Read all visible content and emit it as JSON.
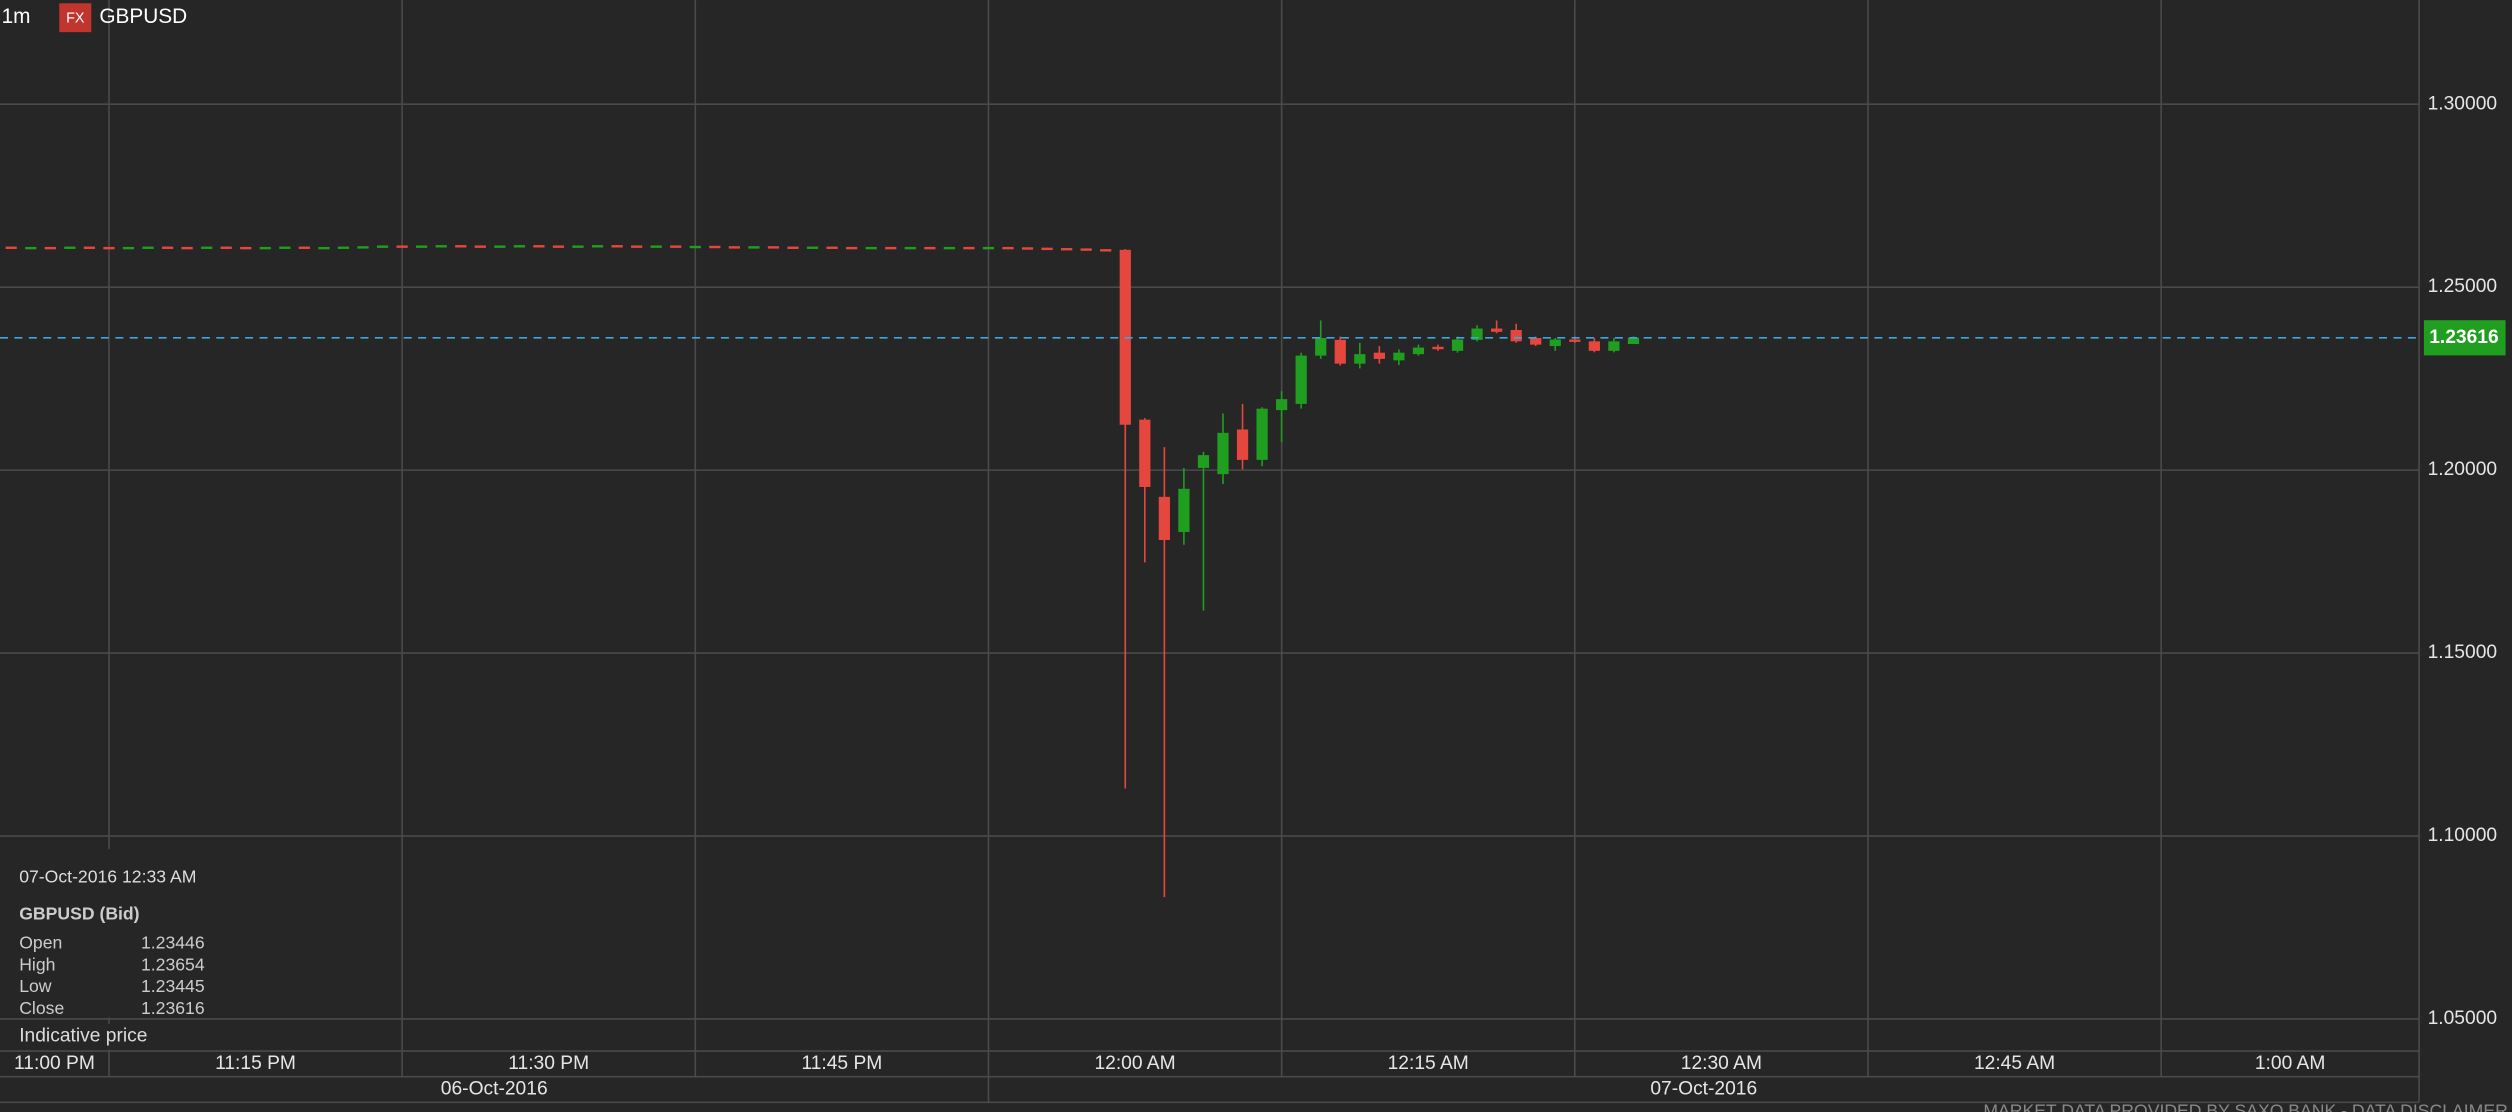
{
  "chart_data": {
    "type": "candlestick",
    "interval": "1m",
    "badge": "FX",
    "title": "GBPUSD",
    "x": [
      "23:10",
      "23:11",
      "23:12",
      "23:13",
      "23:14",
      "23:15",
      "23:16",
      "23:17",
      "23:18",
      "23:19",
      "23:20",
      "23:21",
      "23:22",
      "23:23",
      "23:24",
      "23:25",
      "23:26",
      "23:27",
      "23:28",
      "23:29",
      "23:30",
      "23:31",
      "23:32",
      "23:33",
      "23:34",
      "23:35",
      "23:36",
      "23:37",
      "23:38",
      "23:39",
      "23:40",
      "23:41",
      "23:42",
      "23:43",
      "23:44",
      "23:45",
      "23:46",
      "23:47",
      "23:48",
      "23:49",
      "23:50",
      "23:51",
      "23:52",
      "23:53",
      "23:54",
      "23:55",
      "23:56",
      "23:57",
      "23:58",
      "23:59",
      "00:00",
      "00:01",
      "00:02",
      "00:03",
      "00:04",
      "00:05",
      "00:06",
      "00:07",
      "00:08",
      "00:09",
      "00:10",
      "00:11",
      "00:12",
      "00:13",
      "00:14",
      "00:15",
      "00:16",
      "00:17",
      "00:18",
      "00:19",
      "00:20",
      "00:21",
      "00:22",
      "00:23",
      "00:24",
      "00:25",
      "00:26",
      "00:27",
      "00:28",
      "00:29",
      "00:30",
      "00:31",
      "00:32",
      "00:33"
    ],
    "open": [
      1.2611,
      1.2609,
      1.261,
      1.2609,
      1.2611,
      1.261,
      1.2609,
      1.261,
      1.2611,
      1.261,
      1.2609,
      1.2611,
      1.261,
      1.2609,
      1.261,
      1.2611,
      1.261,
      1.261,
      1.2611,
      1.2612,
      1.2614,
      1.2613,
      1.2614,
      1.2615,
      1.2614,
      1.2613,
      1.2614,
      1.2615,
      1.2614,
      1.2613,
      1.2614,
      1.2615,
      1.2614,
      1.2613,
      1.2614,
      1.2612,
      1.2613,
      1.2612,
      1.2611,
      1.2612,
      1.2611,
      1.261,
      1.2611,
      1.261,
      1.2609,
      1.261,
      1.2609,
      1.261,
      1.2609,
      1.261,
      1.2609,
      1.261,
      1.2609,
      1.2608,
      1.2607,
      1.2606,
      1.2604,
      1.2602,
      1.2138,
      1.1927,
      1.1831,
      1.2006,
      1.1989,
      1.2111,
      1.2028,
      1.2164,
      1.2181,
      1.2313,
      1.2356,
      1.2291,
      1.2321,
      1.23,
      1.2317,
      1.2337,
      1.2326,
      1.2356,
      1.2387,
      1.2383,
      1.2361,
      1.2339,
      1.2357,
      1.2352,
      1.2326,
      1.23446
    ],
    "high": [
      1.2611,
      1.261,
      1.261,
      1.2611,
      1.2611,
      1.261,
      1.261,
      1.2611,
      1.2611,
      1.261,
      1.2611,
      1.2611,
      1.261,
      1.261,
      1.2611,
      1.2611,
      1.261,
      1.2611,
      1.2612,
      1.2614,
      1.2614,
      1.2614,
      1.2615,
      1.2615,
      1.2614,
      1.2614,
      1.2615,
      1.2615,
      1.2614,
      1.2614,
      1.2615,
      1.2615,
      1.2614,
      1.2614,
      1.2614,
      1.2613,
      1.2613,
      1.2612,
      1.2612,
      1.2612,
      1.2611,
      1.2611,
      1.2611,
      1.261,
      1.261,
      1.261,
      1.261,
      1.261,
      1.261,
      1.261,
      1.261,
      1.261,
      1.2609,
      1.2608,
      1.2607,
      1.2606,
      1.2604,
      1.2604,
      1.2142,
      1.2063,
      1.2006,
      1.205,
      1.2155,
      1.2181,
      1.2172,
      1.2216,
      1.2321,
      1.2409,
      1.2365,
      1.2348,
      1.2339,
      1.233,
      1.2343,
      1.2343,
      1.2365,
      1.2396,
      1.2409,
      1.24,
      1.2365,
      1.2361,
      1.2365,
      1.2361,
      1.2361,
      1.23654
    ],
    "low": [
      1.2609,
      1.2609,
      1.2609,
      1.2609,
      1.261,
      1.2609,
      1.2609,
      1.261,
      1.261,
      1.2609,
      1.2609,
      1.261,
      1.2609,
      1.2609,
      1.261,
      1.261,
      1.261,
      1.261,
      1.2611,
      1.2612,
      1.2613,
      1.2613,
      1.2614,
      1.2614,
      1.2613,
      1.2613,
      1.2614,
      1.2614,
      1.2613,
      1.2613,
      1.2614,
      1.2614,
      1.2613,
      1.2613,
      1.2612,
      1.2612,
      1.2612,
      1.2611,
      1.2611,
      1.2611,
      1.261,
      1.261,
      1.261,
      1.2609,
      1.2609,
      1.2609,
      1.2609,
      1.2609,
      1.2609,
      1.2609,
      1.2609,
      1.2609,
      1.2608,
      1.2607,
      1.2606,
      1.2604,
      1.2602,
      1.113,
      1.1748,
      1.0833,
      1.1796,
      1.1616,
      1.1962,
      1.2002,
      1.2011,
      1.2076,
      1.2168,
      1.2304,
      1.2286,
      1.2278,
      1.2291,
      1.2287,
      1.2313,
      1.2326,
      1.2321,
      1.2352,
      1.2374,
      1.2348,
      1.2339,
      1.2326,
      1.2348,
      1.2322,
      1.2322,
      1.23445
    ],
    "close": [
      1.2609,
      1.261,
      1.2609,
      1.2611,
      1.261,
      1.2609,
      1.261,
      1.2611,
      1.261,
      1.2609,
      1.2611,
      1.261,
      1.2609,
      1.261,
      1.2611,
      1.261,
      1.261,
      1.2611,
      1.2612,
      1.2614,
      1.2613,
      1.2614,
      1.2615,
      1.2614,
      1.2613,
      1.2614,
      1.2615,
      1.2614,
      1.2613,
      1.2614,
      1.2615,
      1.2614,
      1.2613,
      1.2614,
      1.2612,
      1.2613,
      1.2612,
      1.2611,
      1.2612,
      1.2611,
      1.261,
      1.2611,
      1.261,
      1.2609,
      1.261,
      1.2609,
      1.261,
      1.2609,
      1.261,
      1.2609,
      1.261,
      1.2609,
      1.2608,
      1.2607,
      1.2606,
      1.2604,
      1.2602,
      1.2124,
      1.1954,
      1.1809,
      1.1949,
      1.2041,
      1.2102,
      1.2028,
      1.2168,
      1.2194,
      1.2313,
      1.2361,
      1.2291,
      1.2317,
      1.2304,
      1.2321,
      1.2335,
      1.2333,
      1.2357,
      1.2387,
      1.2378,
      1.2352,
      1.2343,
      1.2357,
      1.2352,
      1.2326,
      1.2352,
      1.23616
    ],
    "up_color": "#1f9e1f",
    "down_color": "#e5473f",
    "price_line_color": "#3ea6e0",
    "ylim": [
      1.04124,
      1.32846
    ],
    "yticks": [
      {
        "value": 1.05,
        "label": "1.05000"
      },
      {
        "value": 1.1,
        "label": "1.10000"
      },
      {
        "value": 1.15,
        "label": "1.15000"
      },
      {
        "value": 1.2,
        "label": "1.20000"
      },
      {
        "value": 1.25,
        "label": "1.25000"
      },
      {
        "value": 1.3,
        "label": "1.30000"
      }
    ],
    "xticks": [
      {
        "value": "23:00",
        "label": "11:00 PM"
      },
      {
        "value": "23:15",
        "label": "11:15 PM"
      },
      {
        "value": "23:30",
        "label": "11:30 PM"
      },
      {
        "value": "23:45",
        "label": "11:45 PM"
      },
      {
        "value": "00:00",
        "label": "12:00 AM"
      },
      {
        "value": "00:15",
        "label": "12:15 AM"
      },
      {
        "value": "00:30",
        "label": "12:30 AM"
      },
      {
        "value": "00:45",
        "label": "12:45 AM"
      },
      {
        "value": "01:00",
        "label": "1:00 AM"
      }
    ],
    "dates": [
      "06-Oct-2016",
      "07-Oct-2016"
    ],
    "grid": true,
    "tooltip": {
      "time": "07-Oct-2016 12:33 AM",
      "instrument": "GBPUSD (Bid)",
      "labels": [
        "Open",
        "High",
        "Low",
        "Close"
      ],
      "note": "Indicative price"
    },
    "footer": "MARKET DATA PROVIDED BY SAXO BANK - DATA DISCLAIMER"
  }
}
